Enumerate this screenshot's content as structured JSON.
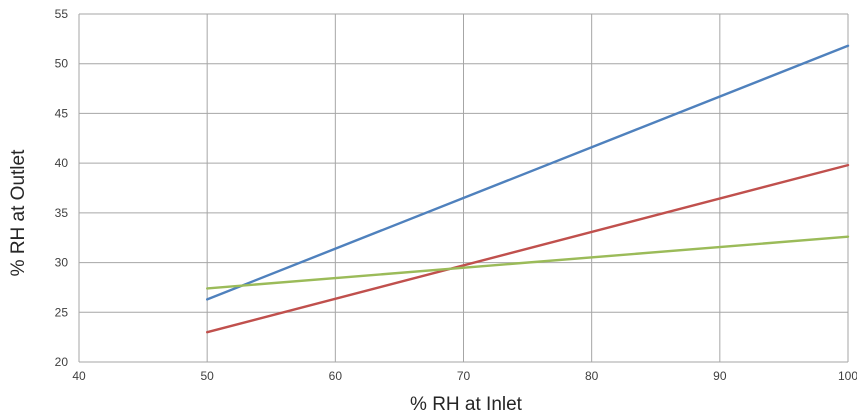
{
  "chart_data": {
    "type": "line",
    "title": "",
    "xlabel": "% RH at Inlet",
    "ylabel": "% RH at Outlet",
    "xlim": [
      40,
      100
    ],
    "ylim": [
      20,
      55
    ],
    "xticks": [
      40,
      50,
      60,
      70,
      80,
      90,
      100
    ],
    "yticks": [
      20,
      25,
      30,
      35,
      40,
      45,
      50,
      55
    ],
    "grid": true,
    "legend": "none",
    "series": [
      {
        "color": "#4f81bd",
        "x": [
          50,
          100
        ],
        "y": [
          26.3,
          51.8
        ]
      },
      {
        "color": "#c0504d",
        "x": [
          50,
          100
        ],
        "y": [
          23.0,
          39.8
        ]
      },
      {
        "color": "#9bbb59",
        "x": [
          50,
          100
        ],
        "y": [
          27.4,
          32.6
        ]
      }
    ]
  }
}
